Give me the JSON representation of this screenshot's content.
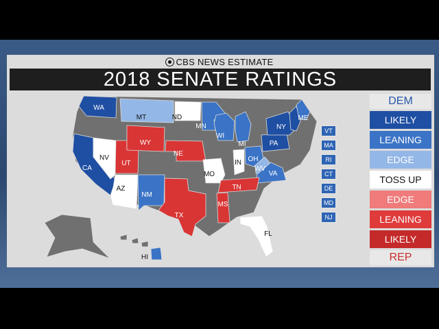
{
  "broadcaster": "CBS NEWS ESTIMATE",
  "title": "2018 SENATE RATINGS",
  "legend": {
    "dem_label": "DEM",
    "rep_label": "REP",
    "items": [
      {
        "label": "LIKELY",
        "color": "#1f4fa3"
      },
      {
        "label": "LEANING",
        "color": "#3b74c6"
      },
      {
        "label": "EDGE",
        "color": "#93b7e6"
      },
      {
        "label": "TOSS UP",
        "color": "#ffffff"
      },
      {
        "label": "EDGE",
        "color": "#ef7b7b"
      },
      {
        "label": "LEANING",
        "color": "#df3b3b"
      },
      {
        "label": "LIKELY",
        "color": "#c42a2a"
      }
    ]
  },
  "colors": {
    "dem": "#1f4fa3",
    "dem_lean": "#3b74c6",
    "dem_edge": "#93b7e6",
    "toss_up": "#ffffff",
    "rep": "#d93535",
    "no_race": "#707070"
  },
  "states": {
    "WA": "WA",
    "CA": "CA",
    "NV": "NV",
    "AZ": "AZ",
    "UT": "UT",
    "MT": "MT",
    "WY": "WY",
    "ND": "ND",
    "NE": "NE",
    "NM": "NM",
    "TX": "TX",
    "MN": "MN",
    "WI": "WI",
    "MI": "MI",
    "MO": "MO",
    "IN": "IN",
    "OH": "OH",
    "TN": "TN",
    "MS": "MS",
    "FL": "FL",
    "WV": "WV",
    "VA": "VA",
    "PA": "PA",
    "NY": "NY",
    "ME": "ME",
    "HI": "HI"
  },
  "northeast_chips": [
    "VT",
    "MA",
    "RI",
    "CT",
    "DE",
    "MD",
    "NJ"
  ]
}
